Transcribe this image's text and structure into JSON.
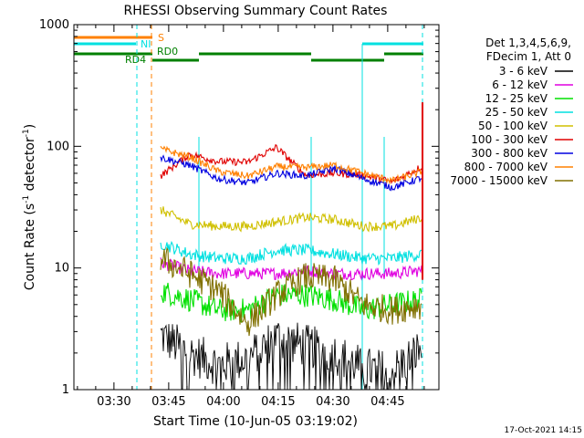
{
  "chart_data": {
    "type": "line",
    "title": "RHESSI Observing Summary Count Rates",
    "xlabel": "Start Time (10-Jun-05 03:19:02)",
    "ylabel_main": "Count Rate (s",
    "ylabel_sup": "-1",
    "ylabel_mid": " detector",
    "ylabel_end": ")",
    "x_units": "minutes since 03:19:02",
    "xlim": [
      0,
      100
    ],
    "ylim": [
      1,
      1000
    ],
    "y_scale": "log",
    "x_ticks": [
      {
        "m": 10.97,
        "label": "03:30"
      },
      {
        "m": 25.97,
        "label": "03:45"
      },
      {
        "m": 40.97,
        "label": "04:00"
      },
      {
        "m": 55.97,
        "label": "04:15"
      },
      {
        "m": 70.97,
        "label": "04:30"
      },
      {
        "m": 85.97,
        "label": "04:45"
      }
    ],
    "y_ticks": [
      {
        "v": 1,
        "label": "1"
      },
      {
        "v": 10,
        "label": "10"
      },
      {
        "v": 100,
        "label": "100"
      },
      {
        "v": 1000,
        "label": "1000"
      }
    ],
    "legend_header": [
      "Det 1,3,4,5,6,9,",
      "FDecim 1, Att 0"
    ],
    "series": [
      {
        "name": "3 - 6 keV",
        "color": "#000000",
        "values": [
          2.8,
          2.0,
          1.6,
          1.8,
          2.7,
          2.3,
          2.0,
          1.5,
          1.4,
          2.2
        ]
      },
      {
        "name": "6 - 12 keV",
        "color": "#e000e0",
        "values": [
          11,
          9.5,
          9.0,
          9.0,
          9.0,
          9.5,
          9.0,
          9.0,
          9.0,
          9.5
        ]
      },
      {
        "name": "12 - 25 keV",
        "color": "#00e000",
        "values": [
          6.5,
          5.5,
          4.5,
          4.5,
          6.0,
          6.0,
          5.5,
          4.5,
          5.0,
          5.5
        ]
      },
      {
        "name": "25 - 50 keV",
        "color": "#00e0e0",
        "values": [
          16,
          13,
          12,
          12,
          14,
          14,
          13,
          12,
          12,
          13
        ]
      },
      {
        "name": "50 - 100 keV",
        "color": "#d0c000",
        "values": [
          30,
          23,
          22,
          22,
          24,
          26,
          25,
          22,
          22,
          26
        ]
      },
      {
        "name": "100 - 300 keV",
        "color": "#e00000",
        "values": [
          57,
          86,
          75,
          74,
          98,
          58,
          60,
          58,
          51,
          68
        ]
      },
      {
        "name": "300 - 800 keV",
        "color": "#0000e0",
        "values": [
          81,
          70,
          54,
          50,
          60,
          57,
          66,
          54,
          46,
          55
        ]
      },
      {
        "name": "800 - 7000 keV",
        "color": "#ff8000",
        "values": [
          95,
          82,
          62,
          57,
          68,
          67,
          70,
          60,
          52,
          62
        ]
      },
      {
        "name": "7000 - 15000 keV",
        "color": "#807000",
        "values": [
          12,
          9,
          6.5,
          3.5,
          6,
          8.5,
          8,
          5,
          4.5,
          5
        ]
      }
    ],
    "flags": [
      {
        "name": "S",
        "color": "#ff8000"
      },
      {
        "name": "NI",
        "color": "#00e0e0"
      },
      {
        "name": "RD0",
        "color": "#008000"
      },
      {
        "name": "RD4",
        "color": "#008000"
      }
    ],
    "timestamp": "17-Oct-2021 14:15"
  }
}
